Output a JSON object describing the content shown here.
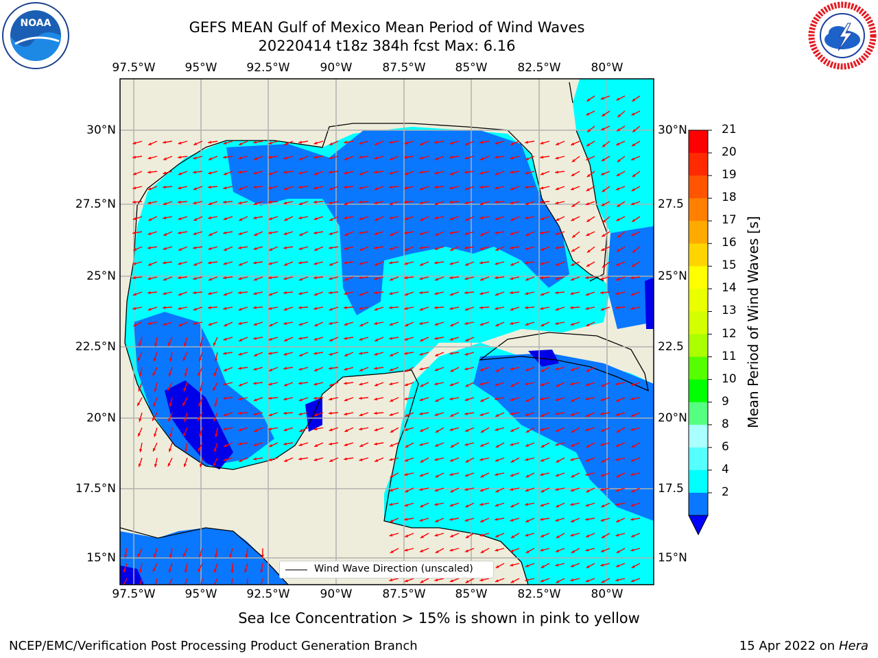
{
  "header": {
    "title_line1": "GEFS MEAN Gulf of Mexico Mean Period of Wind Waves",
    "title_line2": "20220414 t18z 384h fcst   Max: 6.16",
    "noaa_logo_text": "NOAA",
    "noaa_ring_text": "NATIONAL OCEANIC AND ATMOSPHERIC ADMINISTRATION · U.S. DEPARTMENT OF COMMERCE",
    "nws_ring_text": "NATIONAL WEATHER SERVICE"
  },
  "map": {
    "lon_labels": [
      "97.5°W",
      "95°W",
      "92.5°W",
      "90°W",
      "87.5°W",
      "85°W",
      "82.5°W",
      "80°W"
    ],
    "lat_labels_left": [
      "30°N",
      "27.5°N",
      "25°N",
      "22.5°N",
      "20°N",
      "17.5°N",
      "15°N"
    ],
    "lat_labels_right": [
      "30°N",
      "27.5",
      "25°N",
      "22.5",
      "20°N",
      "17.5",
      "15°N"
    ],
    "legend_label": "Wind Wave Direction (unscaled)",
    "colors": {
      "land": "#eeeddb",
      "ocean_low": "#0a77ff",
      "ocean_mid": "#00ffff",
      "ocean_deep": "#0000e8",
      "arrow": "#ff0000",
      "grid": "#b0b0b0"
    }
  },
  "colorbar": {
    "title": "Mean Period of Wind Waves [s]",
    "tick_labels": [
      "21",
      "20",
      "19",
      "18",
      "17",
      "16",
      "15",
      "14",
      "13",
      "12",
      "11",
      "10",
      "9",
      "8",
      "6",
      "4",
      "2"
    ],
    "colors": [
      "#ff0000",
      "#ff2a00",
      "#ff5500",
      "#ff7f00",
      "#ffaa00",
      "#ffd400",
      "#ffff00",
      "#eaff00",
      "#d4ff00",
      "#aaff00",
      "#55ff00",
      "#00ff00",
      "#55ff7f",
      "#aaffff",
      "#55ffff",
      "#00ffff",
      "#0a77ff",
      "#0000ff"
    ]
  },
  "footer": {
    "ice_note": "Sea Ice Concentration > 15% is shown in pink to yellow",
    "credit": "NCEP/EMC/Verification Post Processing Product Generation Branch",
    "date": "15 Apr 2022 on",
    "machine": "Hera"
  }
}
